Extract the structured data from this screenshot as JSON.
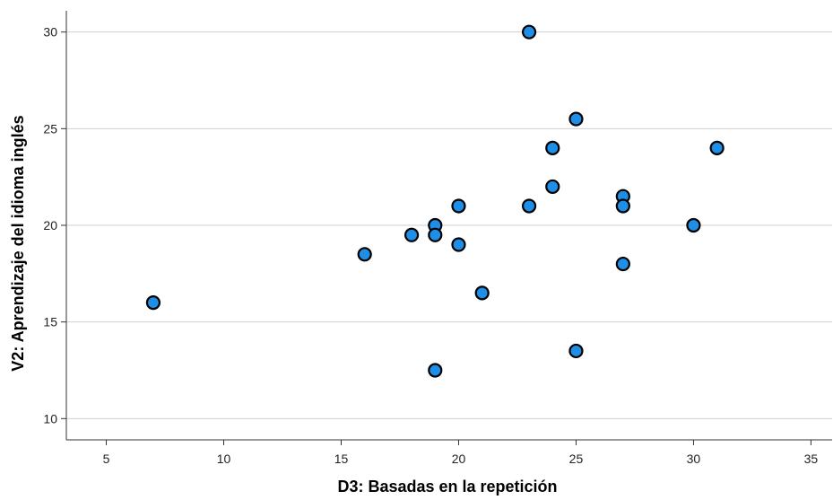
{
  "chart_data": {
    "type": "scatter",
    "title": "",
    "xlabel": "D3: Basadas en la repetición",
    "ylabel": "V2: Aprendizaje del idioma inglés",
    "xlim": [
      3.3,
      35.9
    ],
    "ylim": [
      8.9,
      31.1
    ],
    "xticks": [
      5,
      10,
      15,
      20,
      25,
      30,
      35
    ],
    "yticks": [
      10,
      15,
      20,
      25,
      30
    ],
    "grid": "horizontal",
    "legend": "none",
    "marker_color": "#1f8ee6",
    "marker_edge_color": "#000000",
    "points": [
      {
        "x": 7,
        "y": 16
      },
      {
        "x": 16,
        "y": 18.5
      },
      {
        "x": 18,
        "y": 19.5
      },
      {
        "x": 19,
        "y": 20
      },
      {
        "x": 19,
        "y": 19.5
      },
      {
        "x": 19,
        "y": 12.5
      },
      {
        "x": 20,
        "y": 21
      },
      {
        "x": 20,
        "y": 19
      },
      {
        "x": 21,
        "y": 16.5
      },
      {
        "x": 23,
        "y": 30
      },
      {
        "x": 23,
        "y": 21
      },
      {
        "x": 24,
        "y": 24
      },
      {
        "x": 24,
        "y": 22
      },
      {
        "x": 25,
        "y": 25.5
      },
      {
        "x": 25,
        "y": 13.5
      },
      {
        "x": 27,
        "y": 21.5
      },
      {
        "x": 27,
        "y": 21
      },
      {
        "x": 27,
        "y": 18
      },
      {
        "x": 30,
        "y": 20
      },
      {
        "x": 31,
        "y": 24
      }
    ]
  }
}
